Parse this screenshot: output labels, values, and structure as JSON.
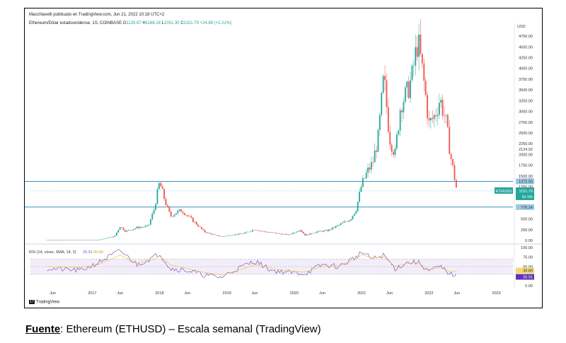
{
  "header": {
    "published_by": "Macchiavelli publicado en TradingView.com, Jun 21, 2022 10:18 UTC+2",
    "symbol_line": "Ethereum/Dólar estadounidense, 1S, COINBASE",
    "ohlc": {
      "o_label": "O",
      "o_value": "1126.97",
      "h_label": "H",
      "h_value": "1168.18",
      "l_label": "L",
      "l_value": "1051.30",
      "c_label": "C",
      "c_value": "1151.79",
      "change": "+24.89 (+2.21%)"
    }
  },
  "rsi_header": "RSI (14, close, SMA, 14, 2)",
  "rsi_values": [
    "26.91",
    "39.89"
  ],
  "footer_brand": "TradingView",
  "caption": {
    "label": "Fuente",
    "text": ": Ethereum (ETHUSD) – Escala semanal (TradingView)"
  },
  "colors": {
    "up": "#26a69a",
    "down": "#ef5350",
    "rsi_line": "#7e57c2",
    "rsi_ma": "#f5c542",
    "hline": "#3f8fbf"
  },
  "chart_data": {
    "type": "candlestick",
    "symbol": "ETHUSD",
    "price_axis_unit": "USD",
    "y_ticks": [
      "0.00",
      "250.00",
      "500.00",
      "750.00",
      "1000.00",
      "1250.00",
      "1500.00",
      "1750.00",
      "2000.00",
      "2250.00",
      "2500.00",
      "2750.00",
      "3000.00",
      "3250.00",
      "3500.00",
      "3750.00",
      "4000.00",
      "4250.00",
      "4500.00",
      "4750.00"
    ],
    "y_extra_ticks": [
      "2124.92",
      "1410.53"
    ],
    "x_ticks": [
      "Jun",
      "2017",
      "Jun",
      "2018",
      "Jun",
      "2019",
      "Jun",
      "2020",
      "Jun",
      "2021",
      "Jun",
      "2022",
      "Jun",
      "2023"
    ],
    "x_tick_dates": [
      "2016-06",
      "2017-01",
      "2017-06",
      "2018-01",
      "2018-06",
      "2019-01",
      "2019-06",
      "2020-01",
      "2020-06",
      "2021-01",
      "2021-06",
      "2022-01",
      "2022-06",
      "2023-01"
    ],
    "horizontal_lines": [
      {
        "label": "1372.93",
        "value": 1372.93
      },
      {
        "label": "776.14",
        "value": 776.14
      }
    ],
    "last_price": {
      "symbol": "ETHUSD",
      "label": "1151.79",
      "value": 1151.79,
      "countdown": "5d 16h"
    },
    "price_series": {
      "name": "ETHUSD",
      "dates": [
        "2016-05",
        "2016-08",
        "2016-11",
        "2017-02",
        "2017-03",
        "2017-05",
        "2017-06",
        "2017-07",
        "2017-09",
        "2017-11",
        "2017-12",
        "2018-01",
        "2018-02",
        "2018-03",
        "2018-04",
        "2018-05",
        "2018-07",
        "2018-09",
        "2018-11",
        "2018-12",
        "2019-02",
        "2019-04",
        "2019-06",
        "2019-07",
        "2019-09",
        "2019-12",
        "2020-02",
        "2020-03",
        "2020-05",
        "2020-07",
        "2020-09",
        "2020-11",
        "2020-12",
        "2021-01",
        "2021-02",
        "2021-03",
        "2021-04",
        "2021-05",
        "2021-06",
        "2021-07",
        "2021-08",
        "2021-09",
        "2021-10",
        "2021-11",
        "2021-12",
        "2022-01",
        "2022-02",
        "2022-03",
        "2022-04",
        "2022-05",
        "2022-06"
      ],
      "values": [
        10,
        12,
        10,
        11,
        40,
        90,
        330,
        210,
        300,
        330,
        700,
        1350,
        900,
        560,
        650,
        700,
        460,
        200,
        120,
        90,
        130,
        160,
        260,
        220,
        180,
        130,
        250,
        120,
        200,
        230,
        360,
        500,
        720,
        1300,
        1600,
        1800,
        2400,
        3800,
        2400,
        2000,
        3200,
        3400,
        3800,
        4650,
        3800,
        2700,
        2900,
        3300,
        2800,
        1900,
        1150
      ]
    },
    "rsi": {
      "name": "RSI (14, close, SMA, 14, 2)",
      "ticks": [
        "0.00",
        "25.00",
        "50.00",
        "75.00",
        "100.00"
      ],
      "band": [
        30,
        70
      ],
      "last_rsi": 26.91,
      "last_ma": 39.89,
      "dates": [
        "2016-05",
        "2016-11",
        "2017-02",
        "2017-06",
        "2017-09",
        "2017-12",
        "2018-01",
        "2018-03",
        "2018-06",
        "2018-09",
        "2018-12",
        "2019-03",
        "2019-06",
        "2019-09",
        "2019-12",
        "2020-03",
        "2020-06",
        "2020-09",
        "2020-12",
        "2021-01",
        "2021-03",
        "2021-05",
        "2021-07",
        "2021-09",
        "2021-11",
        "2022-01",
        "2022-03",
        "2022-05",
        "2022-06"
      ],
      "values": [
        45,
        40,
        60,
        92,
        55,
        75,
        85,
        45,
        40,
        28,
        22,
        45,
        65,
        40,
        35,
        32,
        55,
        50,
        75,
        88,
        70,
        80,
        45,
        60,
        62,
        38,
        50,
        30,
        26.91
      ],
      "ma": [
        50,
        48,
        55,
        80,
        60,
        70,
        78,
        55,
        45,
        35,
        28,
        40,
        55,
        45,
        38,
        36,
        50,
        52,
        70,
        82,
        72,
        76,
        50,
        58,
        60,
        42,
        48,
        36,
        39.89
      ]
    }
  }
}
